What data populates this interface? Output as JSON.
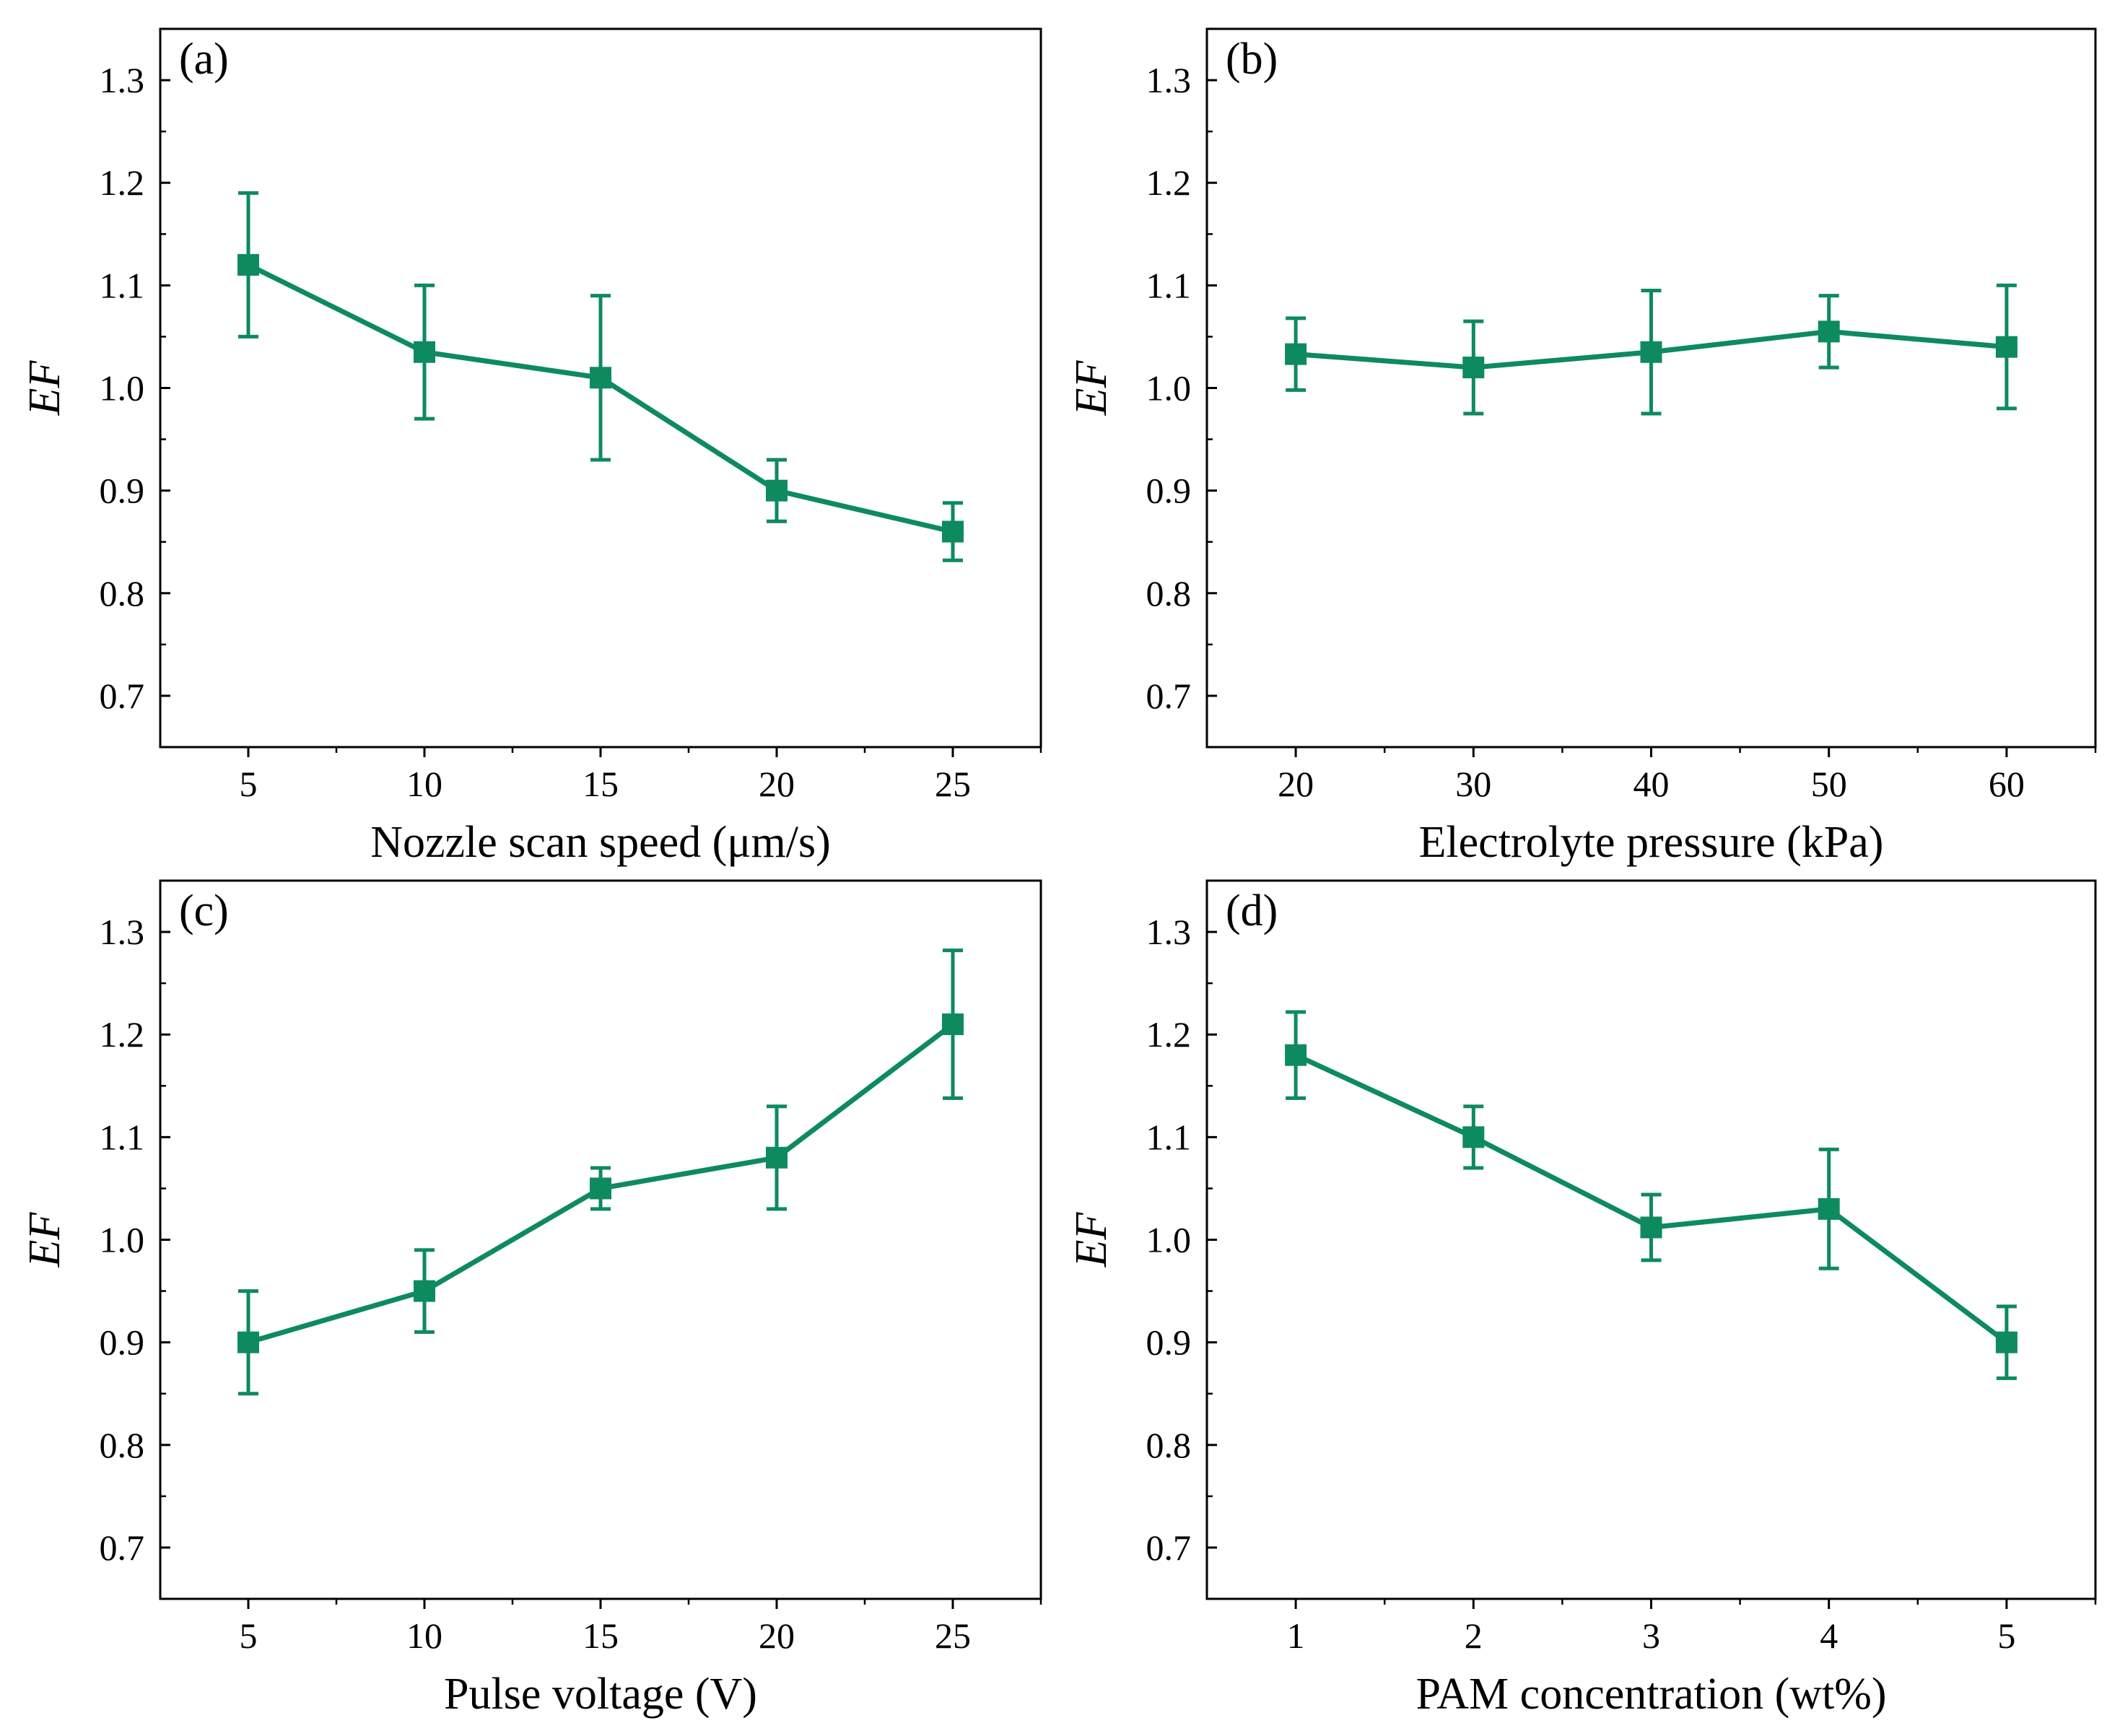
{
  "colors": {
    "series": "#0e8a5f",
    "axis": "#000000",
    "background": "#ffffff"
  },
  "chart_data": [
    {
      "type": "line",
      "panel_label": "(a)",
      "xlabel": "Nozzle scan speed (μm/s)",
      "ylabel": "EF",
      "x": [
        5,
        10,
        15,
        20,
        25
      ],
      "series": [
        {
          "name": "EF",
          "values": [
            1.12,
            1.035,
            1.01,
            0.9,
            0.86
          ],
          "errors": [
            0.07,
            0.065,
            0.08,
            0.03,
            0.028
          ]
        }
      ],
      "xticks": [
        5,
        10,
        15,
        20,
        25
      ],
      "xtick_labels": [
        "5",
        "10",
        "15",
        "20",
        "25"
      ],
      "xlim": [
        2.5,
        27.5
      ],
      "yticks": [
        0.7,
        0.8,
        0.9,
        1.0,
        1.1,
        1.2,
        1.3
      ],
      "ytick_labels": [
        "0.7",
        "0.8",
        "0.9",
        "1.0",
        "1.1",
        "1.2",
        "1.3"
      ],
      "ylim": [
        0.65,
        1.35
      ],
      "grid": false
    },
    {
      "type": "line",
      "panel_label": "(b)",
      "xlabel": "Electrolyte pressure (kPa)",
      "ylabel": "EF",
      "x": [
        20,
        30,
        40,
        50,
        60
      ],
      "series": [
        {
          "name": "EF",
          "values": [
            1.033,
            1.02,
            1.035,
            1.055,
            1.04
          ],
          "errors": [
            0.035,
            0.045,
            0.06,
            0.035,
            0.06
          ]
        }
      ],
      "xticks": [
        20,
        30,
        40,
        50,
        60
      ],
      "xtick_labels": [
        "20",
        "30",
        "40",
        "50",
        "60"
      ],
      "xlim": [
        15,
        65
      ],
      "yticks": [
        0.7,
        0.8,
        0.9,
        1.0,
        1.1,
        1.2,
        1.3
      ],
      "ytick_labels": [
        "0.7",
        "0.8",
        "0.9",
        "1.0",
        "1.1",
        "1.2",
        "1.3"
      ],
      "ylim": [
        0.65,
        1.35
      ],
      "grid": false
    },
    {
      "type": "line",
      "panel_label": "(c)",
      "xlabel": "Pulse voltage (V)",
      "ylabel": "EF",
      "x": [
        5,
        10,
        15,
        20,
        25
      ],
      "series": [
        {
          "name": "EF",
          "values": [
            0.9,
            0.95,
            1.05,
            1.08,
            1.21
          ],
          "errors": [
            0.05,
            0.04,
            0.02,
            0.05,
            0.072
          ]
        }
      ],
      "xticks": [
        5,
        10,
        15,
        20,
        25
      ],
      "xtick_labels": [
        "5",
        "10",
        "15",
        "20",
        "25"
      ],
      "xlim": [
        2.5,
        27.5
      ],
      "yticks": [
        0.7,
        0.8,
        0.9,
        1.0,
        1.1,
        1.2,
        1.3
      ],
      "ytick_labels": [
        "0.7",
        "0.8",
        "0.9",
        "1.0",
        "1.1",
        "1.2",
        "1.3"
      ],
      "ylim": [
        0.65,
        1.35
      ],
      "grid": false
    },
    {
      "type": "line",
      "panel_label": "(d)",
      "xlabel": "PAM concentration (wt%)",
      "ylabel": "EF",
      "x": [
        1,
        2,
        3,
        4,
        5
      ],
      "series": [
        {
          "name": "EF",
          "values": [
            1.18,
            1.1,
            1.012,
            1.03,
            0.9
          ],
          "errors": [
            0.042,
            0.03,
            0.032,
            0.058,
            0.035
          ]
        }
      ],
      "xticks": [
        1,
        2,
        3,
        4,
        5
      ],
      "xtick_labels": [
        "1",
        "2",
        "3",
        "4",
        "5"
      ],
      "xlim": [
        0.5,
        5.5
      ],
      "yticks": [
        0.7,
        0.8,
        0.9,
        1.0,
        1.1,
        1.2,
        1.3
      ],
      "ytick_labels": [
        "0.7",
        "0.8",
        "0.9",
        "1.0",
        "1.1",
        "1.2",
        "1.3"
      ],
      "ylim": [
        0.65,
        1.35
      ],
      "grid": false
    }
  ]
}
